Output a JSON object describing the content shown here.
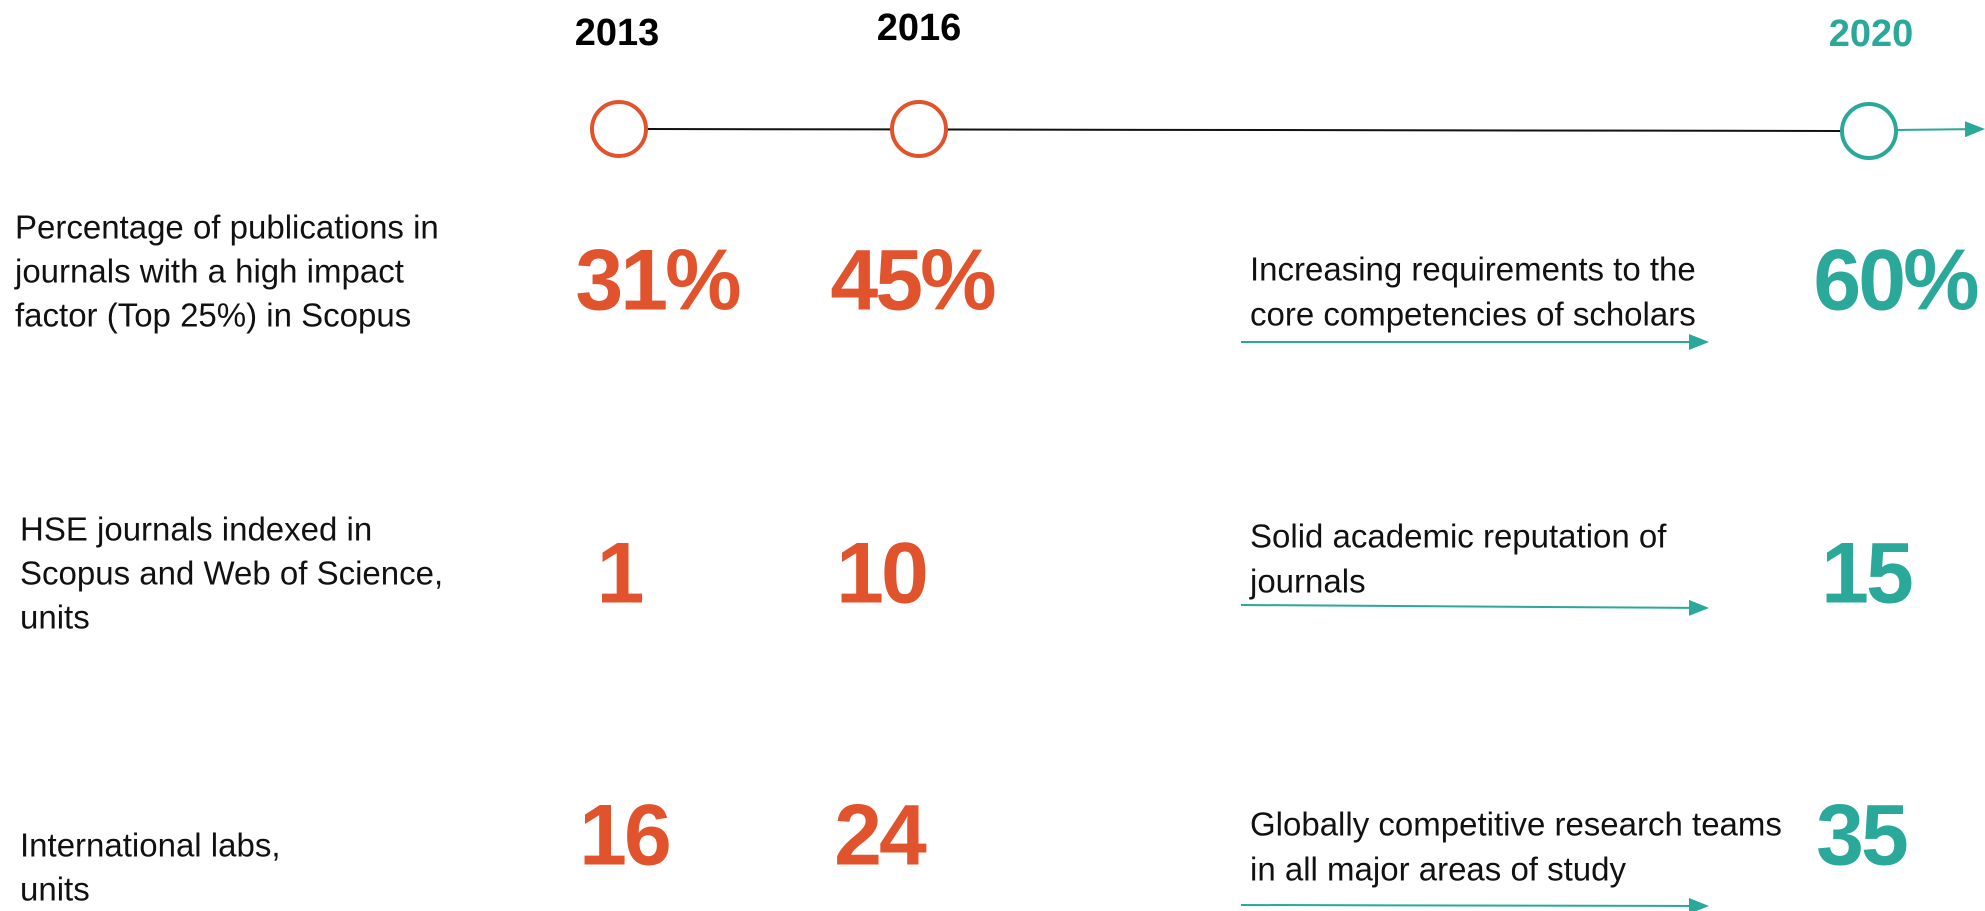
{
  "timeline": {
    "years": [
      "2013",
      "2016",
      "2020"
    ]
  },
  "rows": [
    {
      "label": [
        "Percentage of publications in",
        "journals with a high impact",
        "factor (Top 25%) in Scopus"
      ],
      "values": [
        "31%",
        "45%"
      ],
      "driver": [
        "Increasing requirements to the",
        "core competencies of scholars"
      ],
      "target": "60%"
    },
    {
      "label": [
        "HSE journals indexed in",
        "Scopus and Web of Science,",
        "units"
      ],
      "values": [
        "1",
        "10"
      ],
      "driver": [
        "Solid academic reputation of",
        "journals"
      ],
      "target": "15"
    },
    {
      "label": [
        "International labs,",
        "units"
      ],
      "values": [
        "16",
        "24"
      ],
      "driver": [
        "Globally competitive research teams",
        "in all major areas of study"
      ],
      "target": "35"
    }
  ]
}
